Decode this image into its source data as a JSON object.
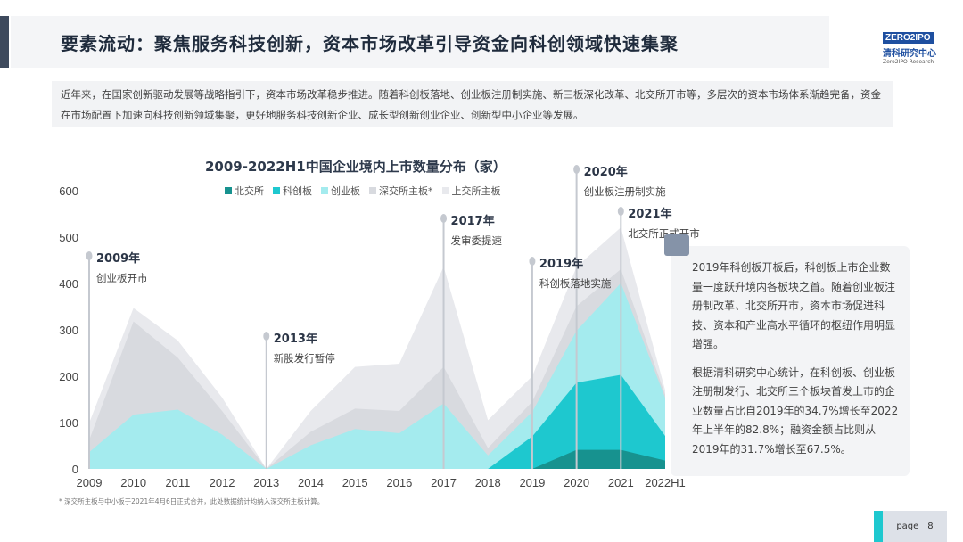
{
  "header": {
    "title": "要素流动：聚焦服务科技创新，资本市场改革引导资金向科创领域快速集聚",
    "logo": {
      "mark": "ZERO2IPO",
      "cn": "清科研究中心",
      "en": "Zero2IPO Research"
    }
  },
  "intro": "近年来，在国家创新驱动发展等战略指引下，资本市场改革稳步推进。随着科创板落地、创业板注册制实施、新三板深化改革、北交所开市等，多层次的资本市场体系渐趋完备，资金在市场配置下加速向科技创新领域集聚，更好地服务科技创新企业、成长型创新创业企业、创新型中小企业等发展。",
  "chart_data": {
    "type": "area",
    "stacked": true,
    "title": "2009-2022H1中国企业境内上市数量分布（家）",
    "categories": [
      "2009",
      "2010",
      "2011",
      "2012",
      "2013",
      "2014",
      "2015",
      "2016",
      "2017",
      "2018",
      "2019",
      "2020",
      "2021",
      "2022H1"
    ],
    "ylim": [
      0,
      600
    ],
    "yticks": [
      0,
      100,
      200,
      300,
      400,
      500,
      600
    ],
    "grid": false,
    "legend_position": "top",
    "series": [
      {
        "name": "北交所",
        "color": "#17928f",
        "values": [
          0,
          0,
          0,
          0,
          0,
          0,
          0,
          0,
          0,
          0,
          0,
          41,
          41,
          18
        ]
      },
      {
        "name": "科创板",
        "color": "#1ec8cf",
        "values": [
          0,
          0,
          0,
          0,
          0,
          0,
          0,
          0,
          0,
          0,
          70,
          145,
          162,
          53
        ]
      },
      {
        "name": "创业板",
        "color": "#a4ebee",
        "values": [
          36,
          117,
          128,
          74,
          0,
          51,
          86,
          77,
          141,
          29,
          53,
          112,
          198,
          82
        ]
      },
      {
        "name": "深交所主板*",
        "color": "#d8dadf",
        "values": [
          26,
          201,
          112,
          51,
          0,
          29,
          44,
          48,
          79,
          16,
          22,
          53,
          30,
          7
        ]
      },
      {
        "name": "上交所主板",
        "color": "#e8e9ed",
        "values": [
          37,
          29,
          37,
          29,
          0,
          45,
          90,
          102,
          216,
          60,
          55,
          85,
          90,
          10
        ]
      }
    ],
    "annotations": [
      {
        "year": "2009年",
        "text": "创业板开市",
        "category": "2009"
      },
      {
        "year": "2013年",
        "text": "新股发行暂停",
        "category": "2013"
      },
      {
        "year": "2017年",
        "text": "发审委提速",
        "category": "2017"
      },
      {
        "year": "2019年",
        "text": "科创板落地实施",
        "category": "2019"
      },
      {
        "year": "2020年",
        "text": "创业板注册制实施",
        "category": "2020"
      },
      {
        "year": "2021年",
        "text": "北交所正式开市",
        "category": "2021"
      }
    ]
  },
  "note": {
    "p1": "2019年科创板开板后，科创板上市企业数量一度跃升境内各板块之首。随着创业板注册制改革、北交所开市，资本市场促进科技、资本和产业高水平循环的枢纽作用明显增强。",
    "p2": "根据清科研究中心统计，在科创板、创业板注册制发行、北交所三个板块首发上市的企业数量占比自2019年的34.7%增长至2022年上半年的82.8%；融资金额占比则从2019年的31.7%增长至67.5%。"
  },
  "footnote": "* 深交所主板与中小板于2021年4月6日正式合并，此处数据统计均纳入深交所主板计算。",
  "footer": {
    "page_label": "page",
    "page_number": "8"
  }
}
